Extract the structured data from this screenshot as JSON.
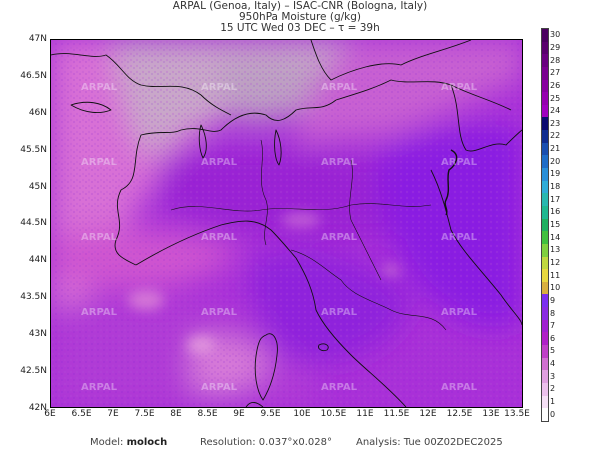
{
  "header": {
    "line1": "ARPAL (Genoa, Italy)  –  ISAC-CNR (Bologna, Italy)",
    "line2": "950hPa Moisture (g/kg)",
    "line3": "15 UTC Wed 03 DEC  –  τ = 39h"
  },
  "axes": {
    "lat_labels": [
      "47N",
      "46.5N",
      "46N",
      "45.5N",
      "45N",
      "44.5N",
      "44N",
      "43.5N",
      "43N",
      "42.5N",
      "42N"
    ],
    "lon_labels": [
      "6E",
      "6.5E",
      "7E",
      "7.5E",
      "8E",
      "8.5E",
      "9E",
      "9.5E",
      "10E",
      "10.5E",
      "11E",
      "11.5E",
      "12E",
      "12.5E",
      "13E",
      "13.5E"
    ]
  },
  "colorbar": {
    "ticks": [
      "30",
      "29",
      "28",
      "27",
      "26",
      "25",
      "24",
      "23",
      "22",
      "21",
      "20",
      "19",
      "18",
      "17",
      "16",
      "15",
      "14",
      "13",
      "12",
      "11",
      "10",
      "9",
      "8",
      "7",
      "6",
      "5",
      "4",
      "3",
      "2",
      "1",
      "0"
    ],
    "colors": [
      "#4b0060",
      "#5a006e",
      "#6a0080",
      "#7a0090",
      "#8800a0",
      "#9600b0",
      "#a000c0",
      "#0c0a70",
      "#102d90",
      "#1a4fb0",
      "#1f6dc8",
      "#2a8fd8",
      "#30acd8",
      "#2ab8b0",
      "#20b890",
      "#20b060",
      "#40c040",
      "#80d040",
      "#c0d840",
      "#e8d840",
      "#d8b040",
      "#7b2ff0",
      "#8a2be2",
      "#a020d0",
      "#b020c8",
      "#c040c8",
      "#d070d0",
      "#e0a0e0",
      "#ecc0ec",
      "#f6e0f6",
      "#ffffff"
    ]
  },
  "watermark": "ARPAL",
  "footer": {
    "model_label": "Model:",
    "model_value": "moloch",
    "resolution": "Resolution: 0.037°x0.028°",
    "analysis": "Analysis: Tue 00Z02DEC2025"
  }
}
